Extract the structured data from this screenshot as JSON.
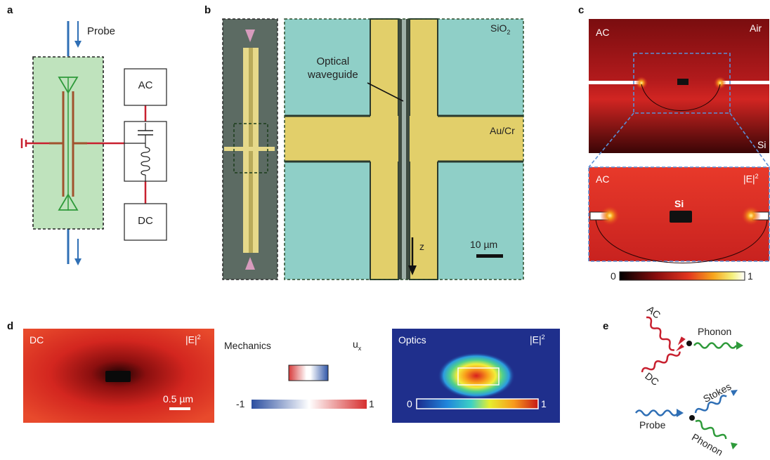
{
  "panels": {
    "a": {
      "letter": "a",
      "probe_label": "Probe",
      "ac_label": "AC",
      "dc_label": "DC"
    },
    "b": {
      "letter": "b",
      "sio2_label": "SiO",
      "sio2_sub": "2",
      "waveguide_line1": "Optical",
      "waveguide_line2": "waveguide",
      "aucr_label": "Au/Cr",
      "z_label": "z",
      "scale_label": "10 µm"
    },
    "c": {
      "letter": "c",
      "top_ac": "AC",
      "air": "Air",
      "si_corner": "Si",
      "bottom_ac": "AC",
      "field": "|E|",
      "field_sup": "2",
      "si_center": "Si",
      "cbar_min": "0",
      "cbar_max": "1"
    },
    "d": {
      "letter": "d",
      "dc": "DC",
      "dc_field": "|E|",
      "dc_field_sup": "2",
      "dc_scale": "0.5 µm",
      "mechanics": "Mechanics",
      "ux": "u",
      "ux_sub": "x",
      "mech_min": "-1",
      "mech_max": "1",
      "optics": "Optics",
      "opt_field": "|E|",
      "opt_field_sup": "2",
      "opt_min": "0",
      "opt_max": "1"
    },
    "e": {
      "letter": "e",
      "ac": "AC",
      "dc": "DC",
      "phonon_top": "Phonon",
      "probe": "Probe",
      "stokes": "Stokes",
      "phonon_bottom": "Phonon"
    }
  },
  "colors": {
    "red_wire": "#c8202f",
    "blue_probe": "#2f6fb5",
    "green_phonon": "#2e9a3a",
    "device_green": "#bfe3bd",
    "electrode_brown": "#a0522d"
  }
}
